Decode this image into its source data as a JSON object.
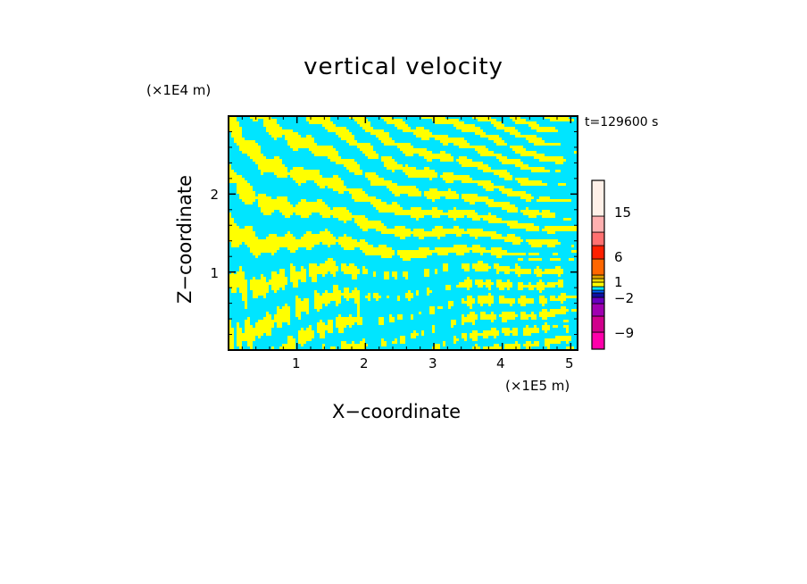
{
  "chart_data": {
    "type": "heatmap",
    "title": "vertical velocity",
    "xlabel": "X−coordinate",
    "ylabel": "Z−coordinate",
    "x_unit": "(×1E5 m)",
    "z_unit": "(×1E4 m)",
    "time_label": "t=129600 s",
    "xlim": [
      0,
      5.1
    ],
    "zlim": [
      0,
      3.0
    ],
    "x_ticks": [
      "1",
      "2",
      "3",
      "4",
      "5"
    ],
    "z_ticks": [
      "1",
      "2"
    ],
    "colorbar": {
      "tick_labels": [
        "15",
        "6",
        "1",
        "−2",
        "−9"
      ],
      "colors_bottom_to_top": [
        "#ff00aa",
        "#d0008c",
        "#a000b0",
        "#6a00c0",
        "#1010a0",
        "#0060ff",
        "#00e5ff",
        "#ffff00",
        "#f0d800",
        "#e0a000",
        "#ff6600",
        "#ff2000",
        "#ff7070",
        "#ffb0b0",
        "#fff0e8"
      ]
    },
    "field_colors": {
      "positive": "#ffff00",
      "negative": "#00e5ff"
    }
  }
}
